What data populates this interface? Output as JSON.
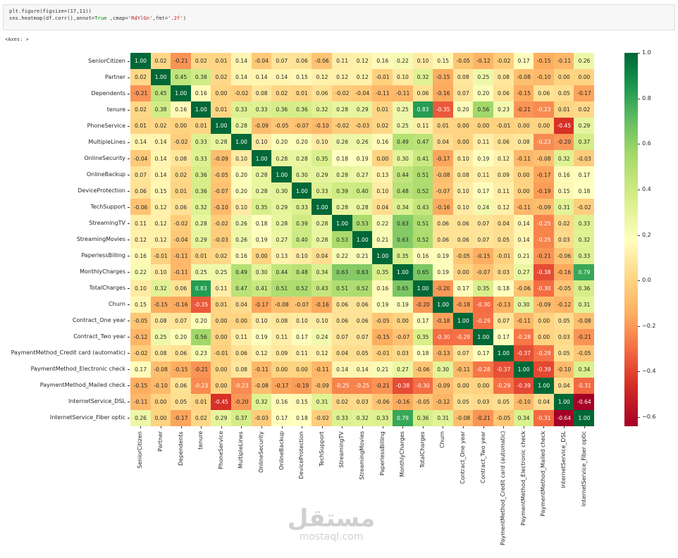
{
  "code_cell": {
    "line1": "plt.figure(figsize=(17,11))",
    "line2_pre": "sns.heatmap(df.corr(),annot=",
    "line2_kw": "True",
    "line2_mid": " ,cmap=",
    "line2_str1": "'RdYlGn'",
    "line2_mid2": ",fmt=",
    "line2_str2": "'.2f'",
    "line2_end": ")"
  },
  "output_label": "<Axes: >",
  "watermark": {
    "arabic": "مستقل",
    "latin": "mostaql.com"
  },
  "chart_data": {
    "type": "heatmap",
    "title": "",
    "xlabel": "",
    "ylabel": "",
    "cmap": "RdYlGn",
    "annot": true,
    "fmt": ".2f",
    "vmin": -0.64,
    "vmax": 1.0,
    "colorbar_ticks": [
      "1.0",
      "0.8",
      "0.6",
      "0.4",
      "0.2",
      "0.0",
      "−0.2",
      "−0.4",
      "−0.6"
    ],
    "colorbar_tick_values": [
      1.0,
      0.8,
      0.6,
      0.4,
      0.2,
      0.0,
      -0.2,
      -0.4,
      -0.6
    ],
    "labels": [
      "SeniorCitizen",
      "Partner",
      "Dependents",
      "tenure",
      "PhoneService",
      "MultipleLines",
      "OnlineSecurity",
      "OnlineBackup",
      "DeviceProtection",
      "TechSupport",
      "StreamingTV",
      "StreamingMovies",
      "PaperlessBilling",
      "MonthlyCharges",
      "TotalCharges",
      "Churn",
      "Contract_One year",
      "Contract_Two year",
      "PaymentMethod_Credit card (automatic)",
      "PaymentMethod_Electronic check",
      "PaymentMethod_Mailed check",
      "InternetService_DSL",
      "InternetService_Fiber optic"
    ],
    "matrix": [
      [
        1.0,
        0.02,
        -0.21,
        0.02,
        0.01,
        0.14,
        -0.04,
        0.07,
        0.06,
        -0.06,
        0.11,
        0.12,
        0.16,
        0.22,
        0.1,
        0.15,
        -0.05,
        -0.12,
        -0.02,
        0.17,
        -0.15,
        -0.11,
        0.26
      ],
      [
        0.02,
        1.0,
        0.45,
        0.38,
        0.02,
        0.14,
        0.14,
        0.14,
        0.15,
        0.12,
        0.12,
        0.12,
        -0.01,
        0.1,
        0.32,
        -0.15,
        0.08,
        0.25,
        0.08,
        -0.08,
        -0.1,
        -0.0,
        0.0
      ],
      [
        -0.21,
        0.45,
        1.0,
        0.16,
        -0.0,
        -0.02,
        0.08,
        0.02,
        0.01,
        0.06,
        -0.02,
        -0.04,
        -0.11,
        -0.11,
        0.06,
        -0.16,
        0.07,
        0.2,
        0.06,
        -0.15,
        0.06,
        0.05,
        -0.17
      ],
      [
        0.02,
        0.38,
        0.16,
        1.0,
        0.01,
        0.33,
        0.33,
        0.36,
        0.36,
        0.32,
        0.28,
        0.29,
        0.01,
        0.25,
        0.83,
        -0.35,
        0.2,
        0.56,
        0.23,
        -0.21,
        -0.23,
        0.01,
        0.02
      ],
      [
        0.01,
        0.02,
        -0.0,
        0.01,
        1.0,
        0.28,
        -0.09,
        -0.05,
        -0.07,
        -0.1,
        -0.02,
        -0.03,
        0.02,
        0.25,
        0.11,
        0.01,
        -0.0,
        0.0,
        -0.01,
        0.0,
        -0.0,
        -0.45,
        0.29
      ],
      [
        0.14,
        0.14,
        -0.02,
        0.33,
        0.28,
        1.0,
        0.1,
        0.2,
        0.2,
        0.1,
        0.26,
        0.26,
        0.16,
        0.49,
        0.47,
        0.04,
        -0.0,
        0.11,
        0.06,
        0.08,
        -0.23,
        -0.2,
        0.37
      ],
      [
        -0.04,
        0.14,
        0.08,
        0.33,
        -0.09,
        0.1,
        1.0,
        0.28,
        0.28,
        0.35,
        0.18,
        0.19,
        -0.0,
        0.3,
        0.41,
        -0.17,
        0.1,
        0.19,
        0.12,
        -0.11,
        -0.08,
        0.32,
        -0.03
      ],
      [
        0.07,
        0.14,
        0.02,
        0.36,
        -0.05,
        0.2,
        0.28,
        1.0,
        0.3,
        0.29,
        0.28,
        0.27,
        0.13,
        0.44,
        0.51,
        -0.08,
        0.08,
        0.11,
        0.09,
        -0.0,
        -0.17,
        0.16,
        0.17
      ],
      [
        0.06,
        0.15,
        0.01,
        0.36,
        -0.07,
        0.2,
        0.28,
        0.3,
        1.0,
        0.33,
        0.39,
        0.4,
        0.1,
        0.48,
        0.52,
        -0.07,
        0.1,
        0.17,
        0.11,
        -0.0,
        -0.19,
        0.15,
        0.18
      ],
      [
        -0.06,
        0.12,
        0.06,
        0.32,
        -0.1,
        0.1,
        0.35,
        0.29,
        0.33,
        1.0,
        0.28,
        0.28,
        0.04,
        0.34,
        0.43,
        -0.16,
        0.1,
        0.24,
        0.12,
        -0.11,
        -0.09,
        0.31,
        -0.02
      ],
      [
        0.11,
        0.12,
        -0.02,
        0.28,
        -0.02,
        0.26,
        0.18,
        0.28,
        0.39,
        0.28,
        1.0,
        0.53,
        0.22,
        0.63,
        0.51,
        0.06,
        0.06,
        0.07,
        0.04,
        0.14,
        -0.25,
        0.02,
        0.33
      ],
      [
        0.12,
        0.12,
        -0.04,
        0.29,
        -0.03,
        0.26,
        0.19,
        0.27,
        0.4,
        0.28,
        0.53,
        1.0,
        0.21,
        0.63,
        0.52,
        0.06,
        0.06,
        0.07,
        0.05,
        0.14,
        -0.25,
        0.03,
        0.32
      ],
      [
        0.16,
        -0.01,
        -0.11,
        0.01,
        0.02,
        0.16,
        -0.0,
        0.13,
        0.1,
        0.04,
        0.22,
        0.21,
        1.0,
        0.35,
        0.16,
        0.19,
        -0.05,
        -0.15,
        -0.01,
        0.21,
        -0.21,
        -0.06,
        0.33
      ],
      [
        0.22,
        0.1,
        -0.11,
        0.25,
        0.25,
        0.49,
        0.3,
        0.44,
        0.48,
        0.34,
        0.63,
        0.63,
        0.35,
        1.0,
        0.65,
        0.19,
        0.0,
        -0.07,
        0.03,
        0.27,
        -0.38,
        -0.16,
        0.79
      ],
      [
        0.1,
        0.32,
        0.06,
        0.83,
        0.11,
        0.47,
        0.41,
        0.51,
        0.52,
        0.43,
        0.51,
        0.52,
        0.16,
        0.65,
        1.0,
        -0.2,
        0.17,
        0.35,
        0.18,
        -0.06,
        -0.3,
        -0.05,
        0.36
      ],
      [
        0.15,
        -0.15,
        -0.16,
        -0.35,
        0.01,
        0.04,
        -0.17,
        -0.08,
        -0.07,
        -0.16,
        0.06,
        0.06,
        0.19,
        0.19,
        -0.2,
        1.0,
        -0.18,
        -0.3,
        -0.13,
        0.3,
        -0.09,
        -0.12,
        0.31
      ],
      [
        -0.05,
        0.08,
        0.07,
        0.2,
        -0.0,
        -0.0,
        0.1,
        0.08,
        0.1,
        0.1,
        0.06,
        0.06,
        -0.05,
        0.0,
        0.17,
        -0.18,
        1.0,
        -0.29,
        0.07,
        -0.11,
        -0.0,
        0.05,
        -0.08
      ],
      [
        -0.12,
        0.25,
        0.2,
        0.56,
        0.0,
        0.11,
        0.19,
        0.11,
        0.17,
        0.24,
        0.07,
        0.07,
        -0.15,
        -0.07,
        0.35,
        -0.3,
        -0.29,
        1.0,
        0.17,
        -0.28,
        -0.0,
        0.03,
        -0.21
      ],
      [
        -0.02,
        0.08,
        0.06,
        0.23,
        -0.01,
        0.06,
        0.12,
        0.09,
        0.11,
        0.12,
        0.04,
        0.05,
        -0.01,
        0.03,
        0.18,
        -0.13,
        0.07,
        0.17,
        1.0,
        -0.37,
        -0.29,
        0.05,
        -0.05
      ],
      [
        0.17,
        -0.08,
        -0.15,
        -0.21,
        0.0,
        0.08,
        -0.11,
        -0.0,
        -0.0,
        -0.11,
        0.14,
        0.14,
        0.21,
        0.27,
        -0.06,
        0.3,
        -0.11,
        -0.28,
        -0.37,
        1.0,
        -0.39,
        -0.1,
        0.34
      ],
      [
        -0.15,
        -0.1,
        0.06,
        -0.23,
        -0.0,
        -0.23,
        -0.08,
        -0.17,
        -0.19,
        -0.09,
        -0.25,
        -0.25,
        -0.21,
        -0.38,
        -0.3,
        -0.09,
        -0.0,
        -0.0,
        -0.29,
        -0.39,
        1.0,
        0.04,
        -0.31
      ],
      [
        -0.11,
        -0.0,
        0.05,
        0.01,
        -0.45,
        -0.2,
        0.32,
        0.16,
        0.15,
        0.31,
        0.02,
        0.03,
        -0.06,
        -0.16,
        -0.05,
        -0.12,
        0.05,
        0.03,
        0.05,
        -0.1,
        0.04,
        1.0,
        -0.64
      ],
      [
        0.26,
        0.0,
        -0.17,
        0.02,
        0.29,
        0.37,
        -0.03,
        0.17,
        0.18,
        -0.02,
        0.33,
        0.32,
        0.33,
        0.79,
        0.36,
        0.31,
        -0.08,
        -0.21,
        -0.05,
        0.34,
        -0.31,
        -0.64,
        1.0
      ]
    ],
    "colormap_stops": [
      {
        "v": -0.64,
        "hex": "#a50026"
      },
      {
        "v": -0.45,
        "hex": "#d73027"
      },
      {
        "v": -0.3,
        "hex": "#f46d43"
      },
      {
        "v": -0.15,
        "hex": "#fdae61"
      },
      {
        "v": 0.0,
        "hex": "#fed381"
      },
      {
        "v": 0.18,
        "hex": "#ffffbf"
      },
      {
        "v": 0.35,
        "hex": "#d9ef8b"
      },
      {
        "v": 0.55,
        "hex": "#a6d96a"
      },
      {
        "v": 0.7,
        "hex": "#66bd63"
      },
      {
        "v": 0.85,
        "hex": "#1a9850"
      },
      {
        "v": 1.0,
        "hex": "#006837"
      }
    ]
  }
}
